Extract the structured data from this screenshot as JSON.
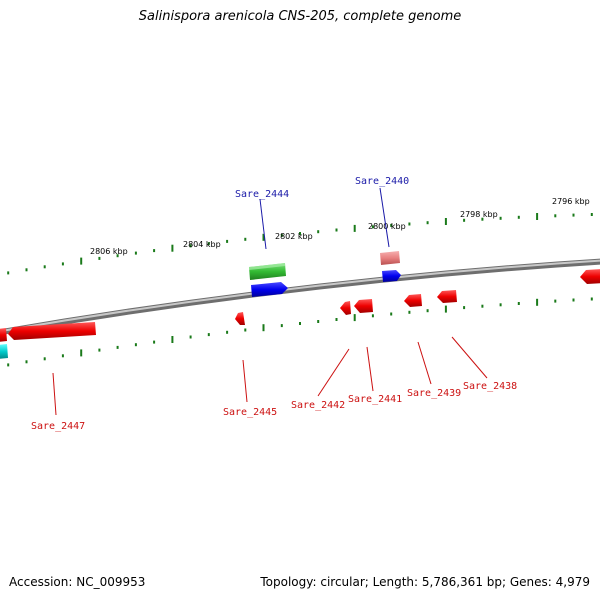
{
  "title": "Salinispora arenicola CNS-205, complete genome",
  "accession": "Accession: NC_009953",
  "stats": "Topology: circular; Length: 5,786,361 bp; Genes: 4,979",
  "colors": {
    "backbone": "#8a8a8a",
    "tick": "#1a7a1a",
    "forward_label": "#1a1aa8",
    "reverse_label": "#cc1111",
    "gene_red": "#ee0000",
    "gene_blue": "#0000ee",
    "gene_green": "#33bb33",
    "gene_pink": "#e88080",
    "gene_cyan": "#00cccc"
  },
  "scale": {
    "unit": "kbp",
    "labels": [
      "2806 kbp",
      "2804 kbp",
      "2802 kbp",
      "2800 kbp",
      "2798 kbp",
      "2796 kbp"
    ]
  },
  "gene_labels": {
    "forward": [
      "Sare_2444",
      "Sare_2440"
    ],
    "reverse": [
      "Sare_2447",
      "Sare_2445",
      "Sare_2442",
      "Sare_2441",
      "Sare_2439",
      "Sare_2438"
    ]
  }
}
